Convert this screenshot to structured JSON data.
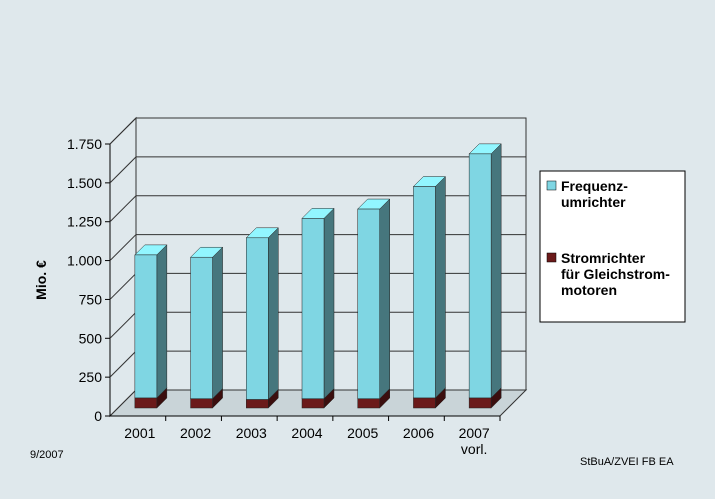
{
  "chart_data": {
    "type": "bar3d_stacked",
    "y_label": "Mio. €",
    "categories": [
      "2001",
      "2002",
      "2003",
      "2004",
      "2005",
      "2006",
      "2007\nvorl."
    ],
    "series": [
      {
        "name": "Frequenz-\numrichter",
        "color": "#7fd6e3",
        "values": [
          920,
          910,
          1040,
          1160,
          1220,
          1360,
          1570
        ]
      },
      {
        "name": "Stromrichter\nfür Gleichstrom-\nmotoren",
        "color": "#6b1a1a",
        "values": [
          65,
          60,
          55,
          60,
          60,
          65,
          65
        ]
      }
    ],
    "ylim": [
      0,
      1750
    ],
    "yticks": [
      0,
      250,
      500,
      750,
      {
        "value": 1000,
        "label": "1.000"
      },
      {
        "value": 1250,
        "label": "1.250"
      },
      {
        "value": 1500,
        "label": "1.500"
      },
      {
        "value": 1750,
        "label": "1.750"
      }
    ],
    "grid": true,
    "footer_left": "9/2007",
    "footer_right": "StBuA/ZVEI FB EA"
  }
}
